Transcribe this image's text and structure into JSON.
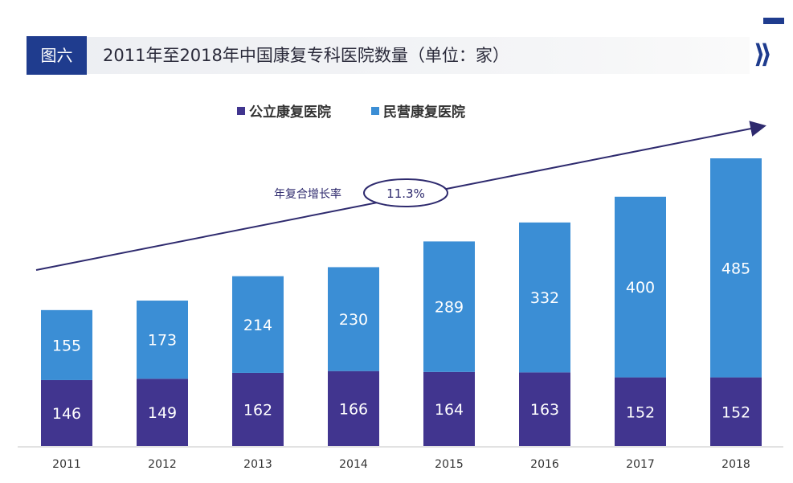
{
  "header": {
    "figure_label": "图六",
    "title": "2011年至2018年中国康复专科医院数量（单位：家）"
  },
  "chart_data": {
    "type": "bar",
    "stacked": true,
    "title": "2011年至2018年中国康复专科医院数量（单位：家）",
    "categories": [
      "2011",
      "2012",
      "2013",
      "2014",
      "2015",
      "2016",
      "2017",
      "2018"
    ],
    "series": [
      {
        "name": "公立康复医院",
        "color": "#41358f",
        "values": [
          146,
          149,
          162,
          166,
          164,
          163,
          152,
          152
        ]
      },
      {
        "name": "民营康复医院",
        "color": "#3b8ed5",
        "values": [
          155,
          173,
          214,
          230,
          289,
          332,
          400,
          485
        ]
      }
    ],
    "legend": "top-center",
    "annotation": {
      "label": "年复合增长率",
      "value": "11.3%"
    },
    "grid": false
  }
}
